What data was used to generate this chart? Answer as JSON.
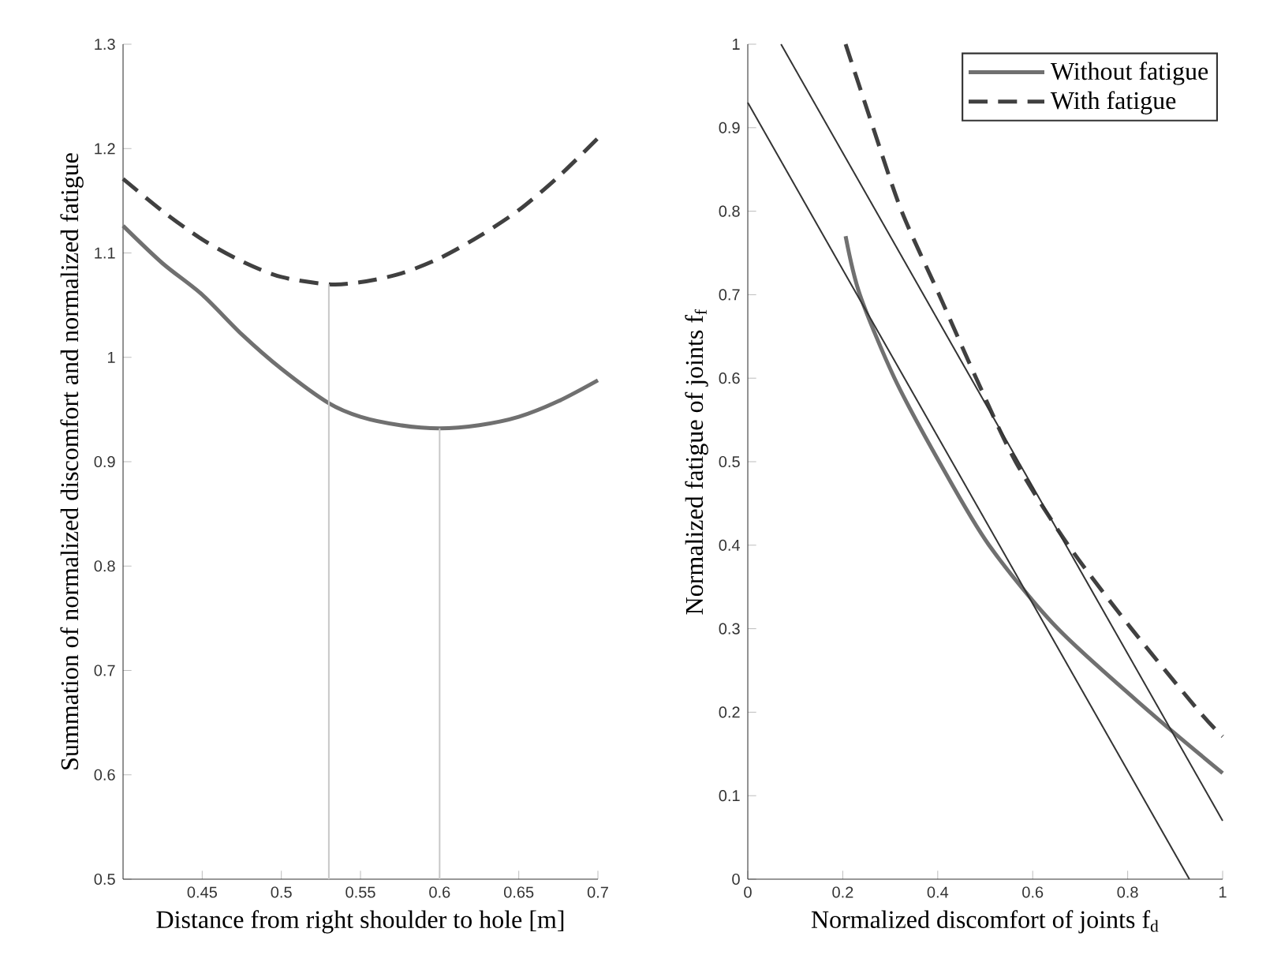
{
  "chart_data": [
    {
      "type": "line",
      "xlabel": "Distance from right shoulder to hole [m]",
      "ylabel": "Summation of normalized discomfort and normalized fatigue",
      "xlim": [
        0.4,
        0.7
      ],
      "ylim": [
        0.5,
        1.3
      ],
      "xticks": [
        0.45,
        0.5,
        0.55,
        0.6,
        0.65,
        0.7
      ],
      "yticks": [
        0.5,
        0.6,
        0.7,
        0.8,
        0.9,
        1,
        1.1,
        1.2,
        1.3
      ],
      "series": [
        {
          "color": "#707070",
          "line_style": "solid",
          "x": [
            0.4,
            0.425,
            0.45,
            0.475,
            0.5,
            0.53,
            0.55,
            0.575,
            0.6,
            0.625,
            0.65,
            0.675,
            0.7
          ],
          "values": [
            1.126,
            1.09,
            1.06,
            1.022,
            0.989,
            0.956,
            0.943,
            0.935,
            0.932,
            0.935,
            0.943,
            0.958,
            0.978
          ]
        },
        {
          "color": "#404040",
          "line_style": "dashed",
          "x": [
            0.4,
            0.425,
            0.45,
            0.475,
            0.5,
            0.53,
            0.55,
            0.575,
            0.6,
            0.625,
            0.65,
            0.675,
            0.7
          ],
          "values": [
            1.171,
            1.14,
            1.113,
            1.092,
            1.077,
            1.07,
            1.072,
            1.08,
            1.095,
            1.116,
            1.141,
            1.173,
            1.21
          ]
        },
        {
          "color": "#c8c8c8",
          "line_style": "solid",
          "x": [
            0.53,
            0.53
          ],
          "values": [
            0.5,
            1.07
          ]
        },
        {
          "color": "#c8c8c8",
          "line_style": "solid",
          "x": [
            0.6,
            0.6
          ],
          "values": [
            0.5,
            0.932
          ]
        }
      ]
    },
    {
      "type": "line",
      "xlabel": "Normalized discomfort of joints f$_{d}$",
      "ylabel": "Normalized fatigue of joints f$_{f}$",
      "xlim": [
        0,
        1
      ],
      "ylim": [
        0,
        1
      ],
      "xticks": [
        0,
        0.2,
        0.4,
        0.6,
        0.8,
        1
      ],
      "yticks": [
        0,
        0.1,
        0.2,
        0.3,
        0.4,
        0.5,
        0.6,
        0.7,
        0.8,
        0.9,
        1
      ],
      "legend": "top right",
      "series": [
        {
          "name": "Without fatigue",
          "color": "#707070",
          "line_style": "solid",
          "x": [
            0.206,
            0.236,
            0.309,
            0.403,
            0.508,
            0.653,
            0.847,
            1.0
          ],
          "values": [
            0.77,
            0.7,
            0.6,
            0.5,
            0.4,
            0.3,
            0.2,
            0.127
          ]
        },
        {
          "name": "With fatigue",
          "color": "#404040",
          "line_style": "dashed",
          "x": [
            0.206,
            0.264,
            0.324,
            0.403,
            0.481,
            0.564,
            0.675,
            0.808,
            0.952,
            1.0
          ],
          "values": [
            1.0,
            0.9,
            0.8,
            0.7,
            0.6,
            0.5,
            0.4,
            0.3,
            0.2,
            0.171
          ]
        },
        {
          "color": "#333333",
          "line_style": "solid",
          "x": [
            0,
            0.93
          ],
          "values": [
            0.93,
            0
          ]
        },
        {
          "color": "#333333",
          "line_style": "solid",
          "x": [
            0.07,
            1.0
          ],
          "values": [
            1.0,
            0.07
          ]
        }
      ]
    }
  ]
}
